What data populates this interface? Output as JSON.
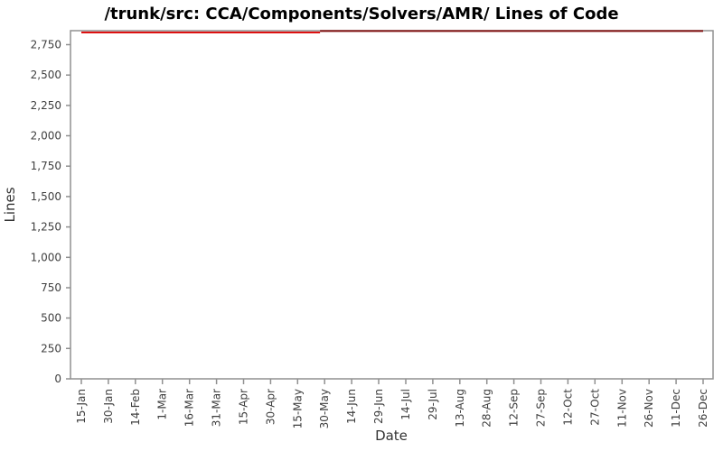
{
  "chart_data": {
    "type": "line",
    "title": "/trunk/src: CCA/Components/Solvers/AMR/ Lines of Code",
    "xlabel": "Date",
    "ylabel": "Lines",
    "grid": false,
    "legend": "none",
    "ylim": [
      0,
      2865
    ],
    "y_ticks": [
      0,
      250,
      500,
      750,
      1000,
      1250,
      1500,
      1750,
      2000,
      2250,
      2500,
      2750
    ],
    "y_tick_labels": [
      "0",
      "250",
      "500",
      "750",
      "1,000",
      "1,250",
      "1,500",
      "1,750",
      "2,000",
      "2,250",
      "2,500",
      "2,750"
    ],
    "x_tick_labels": [
      "15-Jan",
      "30-Jan",
      "14-Feb",
      "1-Mar",
      "16-Mar",
      "31-Mar",
      "15-Apr",
      "30-Apr",
      "15-May",
      "30-May",
      "14-Jun",
      "29-Jun",
      "14-Jul",
      "29-Jul",
      "13-Aug",
      "28-Aug",
      "12-Sep",
      "27-Sep",
      "12-Oct",
      "27-Oct",
      "11-Nov",
      "26-Nov",
      "11-Dec",
      "26-Dec"
    ],
    "series": [
      {
        "name": "lines-of-code",
        "segments": [
          {
            "color": "#dd1111",
            "points": [
              [
                0,
                2850
              ],
              [
                8.83,
                2850
              ]
            ]
          },
          {
            "color": "#7f0f0f",
            "points": [
              [
                8.83,
                2862
              ],
              [
                23,
                2862
              ]
            ]
          }
        ]
      }
    ],
    "colors": {
      "axis": "#909090",
      "tick_label": "#3f3f3f",
      "axis_title": "#333333",
      "title": "#000000",
      "background": "#ffffff"
    }
  }
}
